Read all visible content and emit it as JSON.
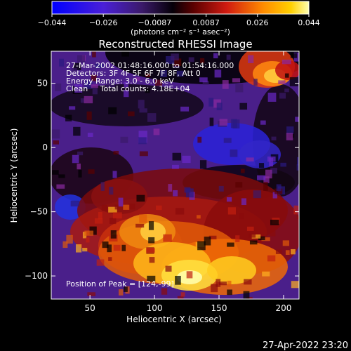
{
  "colorbar": {
    "tick_labels": [
      "−0.044",
      "−0.026",
      "−0.0087",
      "0.0087",
      "0.026",
      "0.044"
    ],
    "units_label": "(photons cm⁻² s⁻¹ asec⁻²)",
    "range": [
      -0.044,
      0.044
    ],
    "colormap": [
      "#0000ff",
      "#3a1be0",
      "#6a28c8",
      "#3b1a6a",
      "#000000",
      "#5a0000",
      "#c01818",
      "#ff5a00",
      "#ffb800",
      "#ffff90"
    ]
  },
  "image": {
    "title": "Reconstructed RHESSI Image",
    "info_line_1": "27-Mar-2002 01:48:16.000 to 01:54:16.000",
    "info_line_2": "Detectors: 3F 4F 5F 6F 7F 8F, Att 0",
    "info_line_3": "Energy Range: 3.0 - 6.0 keV",
    "info_line_4": "Clean     Total counts: 4.18E+04",
    "peak_text": "Position of Peak = [124,-99]"
  },
  "axes": {
    "xlabel": "Heliocentric X (arcsec)",
    "ylabel": "Heliocentric Y (arcsec)",
    "xlim": [
      20,
      212
    ],
    "ylim": [
      -118,
      75
    ],
    "x_ticks": [
      50,
      100,
      150,
      200
    ],
    "y_ticks": [
      -100,
      -50,
      0,
      50
    ],
    "x_tick_labels": [
      "50",
      "100",
      "150",
      "200"
    ],
    "y_tick_labels": [
      "−100",
      "−50",
      "0",
      "50"
    ]
  },
  "footer": {
    "timestamp": "27-Apr-2022 23:20"
  }
}
